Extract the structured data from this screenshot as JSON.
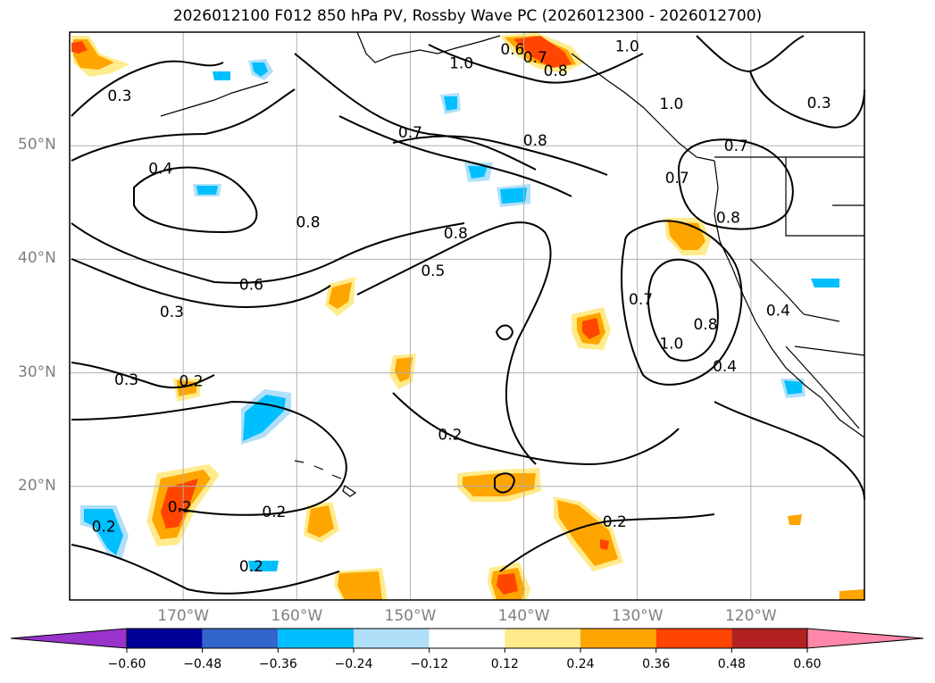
{
  "title": "2026012100 F012 850 hPa PV, Rossby Wave PC (2026012300 - 2026012700)",
  "map": {
    "lon_min": -180,
    "lon_max": -110,
    "lat_min": 10,
    "lat_max": 60,
    "lat_ticks": [
      {
        "value": 20,
        "label": "20°N"
      },
      {
        "value": 30,
        "label": "30°N"
      },
      {
        "value": 40,
        "label": "40°N"
      },
      {
        "value": 50,
        "label": "50°N"
      }
    ],
    "lon_ticks": [
      {
        "value": -170,
        "label": "170°W"
      },
      {
        "value": -160,
        "label": "160°W"
      },
      {
        "value": -150,
        "label": "150°W"
      },
      {
        "value": -140,
        "label": "140°W"
      },
      {
        "value": -130,
        "label": "130°W"
      },
      {
        "value": -120,
        "label": "120°W"
      }
    ],
    "contour_labels": [
      {
        "text": "0.3",
        "lon": -175.6,
        "lat": 54.4
      },
      {
        "text": "0.4",
        "lon": -172.0,
        "lat": 48.0
      },
      {
        "text": "0.8",
        "lon": -159.0,
        "lat": 43.3
      },
      {
        "text": "0.6",
        "lon": -164.0,
        "lat": 37.8
      },
      {
        "text": "0.3",
        "lon": -171.0,
        "lat": 35.4
      },
      {
        "text": "0.3",
        "lon": -175.0,
        "lat": 29.4
      },
      {
        "text": "0.2",
        "lon": -169.3,
        "lat": 29.3
      },
      {
        "text": "0.2",
        "lon": -170.3,
        "lat": 18.2
      },
      {
        "text": "0.2",
        "lon": -177.0,
        "lat": 16.5
      },
      {
        "text": "0.2",
        "lon": -162.0,
        "lat": 17.8
      },
      {
        "text": "0.2",
        "lon": -164.0,
        "lat": 13.0
      },
      {
        "text": "0.2",
        "lon": -146.5,
        "lat": 24.6
      },
      {
        "text": "0.5",
        "lon": -148.0,
        "lat": 39.0
      },
      {
        "text": "0.8",
        "lon": -146.0,
        "lat": 42.3
      },
      {
        "text": "0.7",
        "lon": -150.0,
        "lat": 51.2
      },
      {
        "text": "0.8",
        "lon": -139.0,
        "lat": 50.5
      },
      {
        "text": "1.0",
        "lon": -145.5,
        "lat": 57.3
      },
      {
        "text": "0.6",
        "lon": -141.0,
        "lat": 58.5
      },
      {
        "text": "0.7",
        "lon": -139.0,
        "lat": 57.8
      },
      {
        "text": "0.8",
        "lon": -137.2,
        "lat": 56.6
      },
      {
        "text": "1.0",
        "lon": -130.9,
        "lat": 58.8
      },
      {
        "text": "1.0",
        "lon": -127.0,
        "lat": 53.7
      },
      {
        "text": "0.7",
        "lon": -121.3,
        "lat": 50.0
      },
      {
        "text": "0.7",
        "lon": -126.5,
        "lat": 47.2
      },
      {
        "text": "0.8",
        "lon": -122.0,
        "lat": 43.7
      },
      {
        "text": "0.3",
        "lon": -114.0,
        "lat": 53.8
      },
      {
        "text": "0.7",
        "lon": -129.7,
        "lat": 36.5
      },
      {
        "text": "1.0",
        "lon": -127.0,
        "lat": 32.6
      },
      {
        "text": "0.8",
        "lon": -124.0,
        "lat": 34.3
      },
      {
        "text": "0.4",
        "lon": -122.3,
        "lat": 30.6
      },
      {
        "text": "0.4",
        "lon": -117.6,
        "lat": 35.5
      },
      {
        "text": "0.2",
        "lon": -132.0,
        "lat": 16.9
      }
    ]
  },
  "colorbar": {
    "ticks": [
      "−0.60",
      "−0.48",
      "−0.36",
      "−0.24",
      "−0.12",
      "0.12",
      "0.24",
      "0.36",
      "0.48",
      "0.60"
    ],
    "colors": [
      "#9933cc",
      "#000099",
      "#3366cc",
      "#00bfff",
      "#b0e0f8",
      "#ffffff",
      "#ffeb8c",
      "#ffa500",
      "#ff4500",
      "#b22222",
      "#ff88aa"
    ]
  }
}
